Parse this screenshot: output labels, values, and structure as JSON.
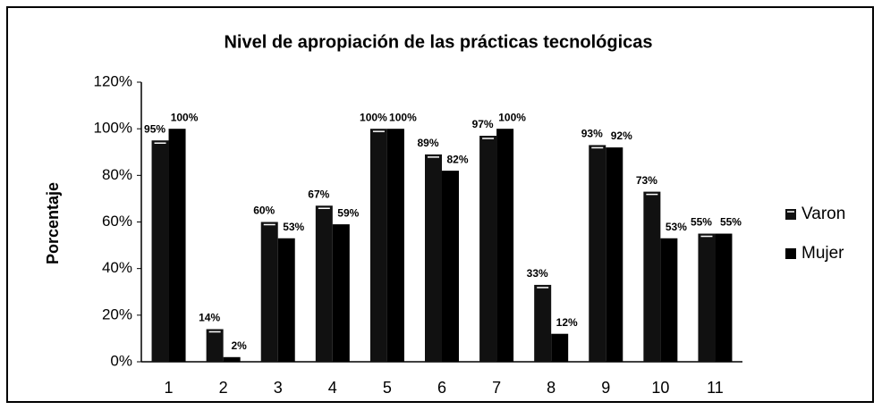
{
  "chart_data": {
    "type": "bar",
    "title": "Nivel de apropiación de las prácticas tecnológicas",
    "y_label": "Porcentaje",
    "categories": [
      "1",
      "2",
      "3",
      "4",
      "5",
      "6",
      "7",
      "8",
      "9",
      "10",
      "11"
    ],
    "series": [
      {
        "name": "Varon",
        "color": "#111111",
        "values": [
          95,
          14,
          60,
          67,
          100,
          89,
          97,
          33,
          93,
          73,
          55
        ],
        "value_labels": [
          "95%",
          "14%",
          "60%",
          "67%",
          "100%",
          "89%",
          "97%",
          "33%",
          "93%",
          "73%",
          "55%"
        ]
      },
      {
        "name": "Mujer",
        "color": "#000000",
        "values": [
          100,
          2,
          53,
          59,
          100,
          82,
          100,
          12,
          92,
          53,
          55
        ],
        "value_labels": [
          "100%",
          "2%",
          "53%",
          "59%",
          "100%",
          "82%",
          "100%",
          "12%",
          "92%",
          "53%",
          "55%"
        ]
      }
    ],
    "ylim": [
      0,
      120
    ],
    "yticks": [
      {
        "value": 0,
        "label": "0%"
      },
      {
        "value": 20,
        "label": "20%"
      },
      {
        "value": 40,
        "label": "40%"
      },
      {
        "value": 60,
        "label": "60%"
      },
      {
        "value": 80,
        "label": "80%"
      },
      {
        "value": 100,
        "label": "100%"
      },
      {
        "value": 120,
        "label": "120%"
      }
    ],
    "legend": "right"
  }
}
